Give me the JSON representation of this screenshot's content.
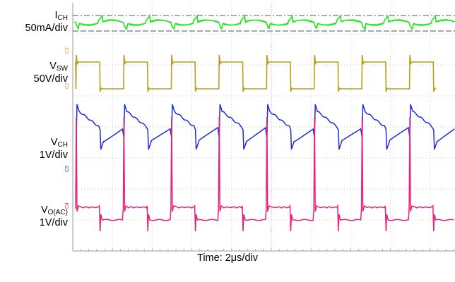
{
  "chart_data": {
    "type": "line",
    "xlabel": "Time: 2μs/div",
    "x_divisions": 10,
    "y_divisions": 8,
    "grid": true,
    "series": [
      {
        "id": "ich",
        "name_main": "I",
        "name_sub": "CH",
        "scale": "50mA/div",
        "color": "#22e022",
        "channel_marker": ""
      },
      {
        "id": "vsw",
        "name_main": "V",
        "name_sub": "SW",
        "scale": "50V/div",
        "color": "#b3a21a",
        "channel_marker": "C2"
      },
      {
        "id": "vch",
        "name_main": "V",
        "name_sub": "CH",
        "scale": "1V/div",
        "color": "#1f2bd6",
        "channel_marker": "C3"
      },
      {
        "id": "vo",
        "name_main": "V",
        "name_sub": "O(AC)",
        "scale": "1V/div",
        "color": "#e8217a",
        "channel_marker": "C4"
      }
    ],
    "switching_period_us": 2.4,
    "duty_cycle": 0.5
  }
}
